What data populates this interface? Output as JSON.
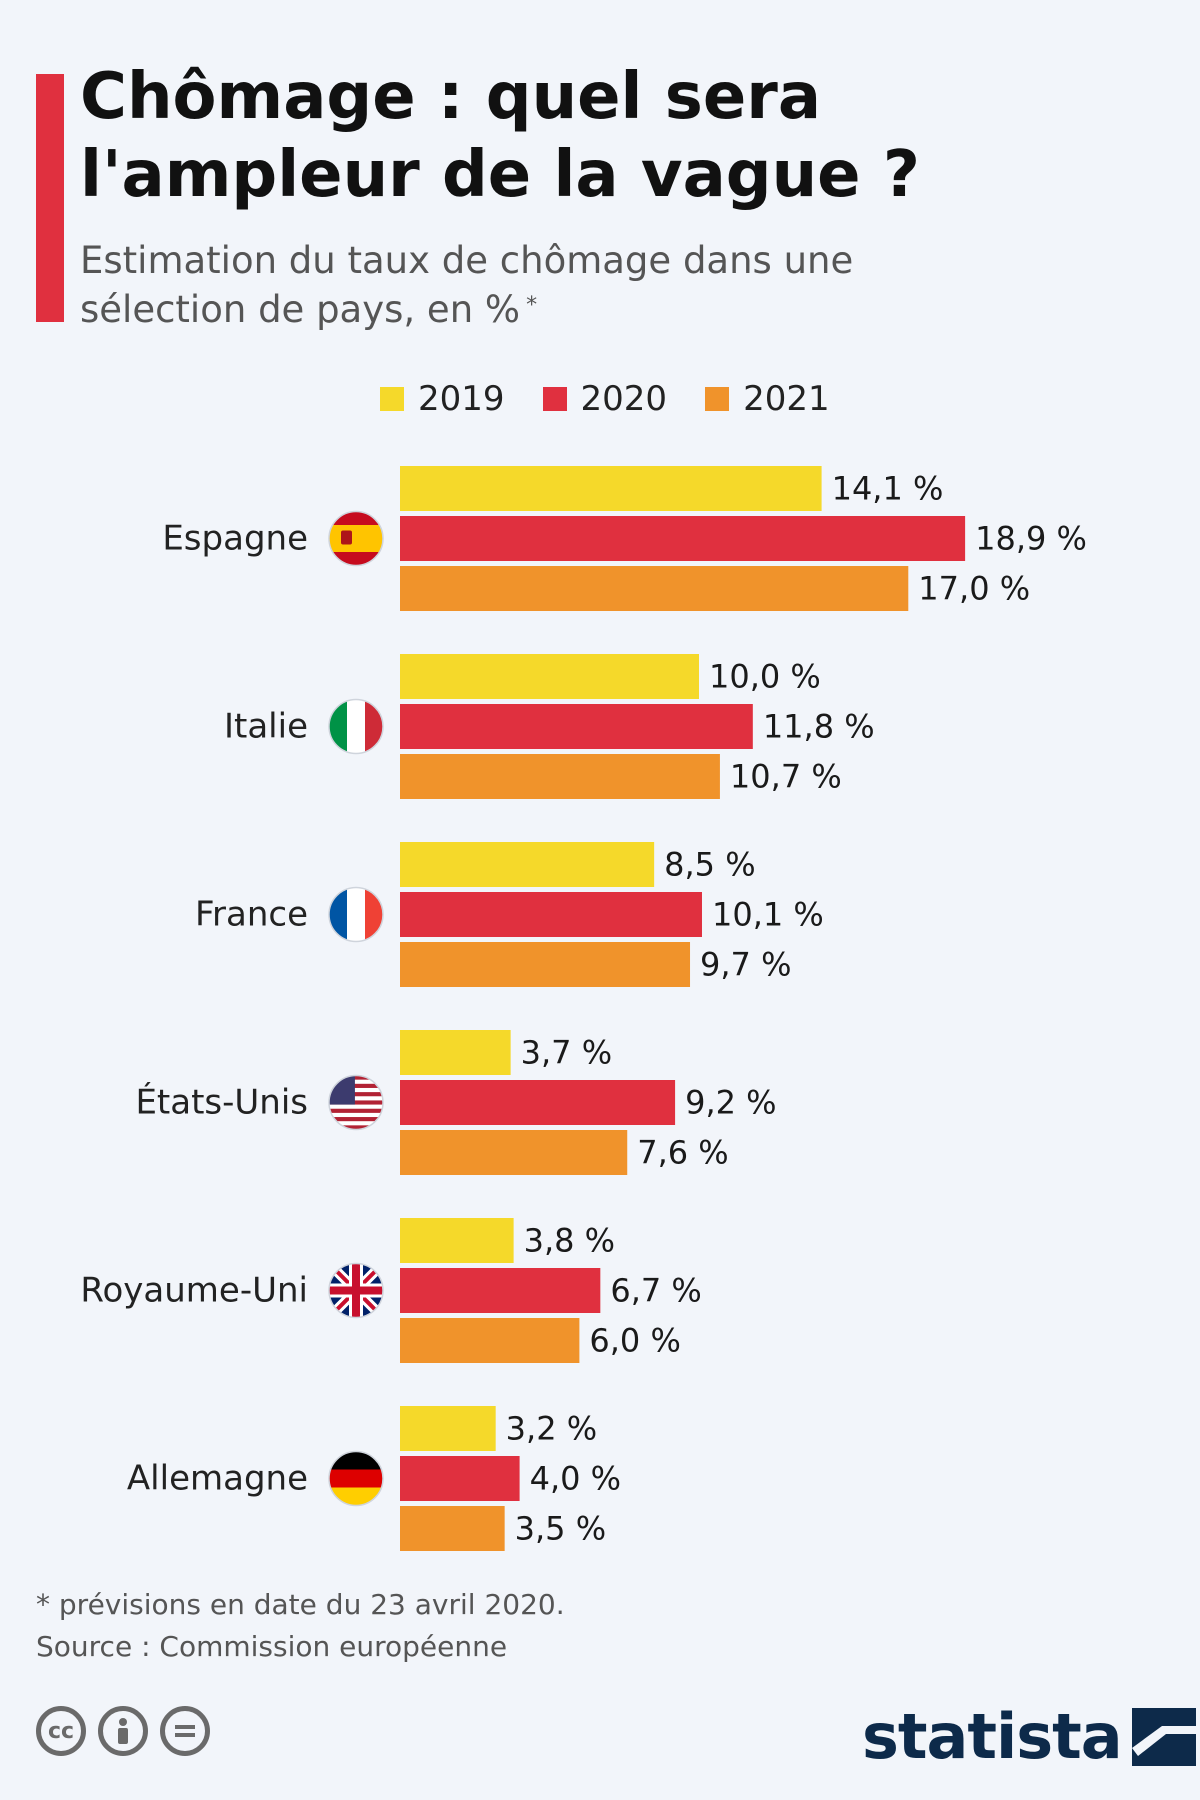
{
  "header": {
    "title": "Chômage : quel sera l'ampleur de la vague ?",
    "subtitle": "Estimation du taux de chômage dans une sélection de pays, en %",
    "subtitle_marker": "*"
  },
  "footer": {
    "footnote": "* prévisions en date du 23 avril 2020.",
    "source": "Source : Commission européenne",
    "brand": "statista"
  },
  "icons": {
    "license": [
      "cc-icon",
      "by-icon",
      "nd-icon"
    ],
    "logo": "statista-logo-icon"
  },
  "colors": {
    "accent": "#e0303f",
    "series_2019": "#f5d92a",
    "series_2020": "#e0303f",
    "series_2021": "#f0932b",
    "brand_dark": "#0d2a4a"
  },
  "chart_data": {
    "type": "bar",
    "orientation": "horizontal",
    "categories": [
      "Espagne",
      "Italie",
      "France",
      "États-Unis",
      "Royaume-Uni",
      "Allemagne"
    ],
    "flags": [
      "spain-flag-icon",
      "italy-flag-icon",
      "france-flag-icon",
      "usa-flag-icon",
      "uk-flag-icon",
      "germany-flag-icon"
    ],
    "series": [
      {
        "name": "2019",
        "color": "#f5d92a",
        "values": [
          14.1,
          10.0,
          8.5,
          3.7,
          3.8,
          3.2
        ],
        "labels": [
          "14,1 %",
          "10,0 %",
          "8,5 %",
          "3,7 %",
          "3,8 %",
          "3,2 %"
        ]
      },
      {
        "name": "2020",
        "color": "#e0303f",
        "values": [
          18.9,
          11.8,
          10.1,
          9.2,
          6.7,
          4.0
        ],
        "labels": [
          "18,9 %",
          "11,8 %",
          "10,1 %",
          "9,2 %",
          "6,7 %",
          "4,0 %"
        ]
      },
      {
        "name": "2021",
        "color": "#f0932b",
        "values": [
          17.0,
          10.7,
          9.7,
          7.6,
          6.0,
          3.5
        ],
        "labels": [
          "17,0 %",
          "10,7 %",
          "9,7 %",
          "7,6 %",
          "6,0 %",
          "3,5 %"
        ]
      }
    ],
    "xlim": [
      0,
      20
    ],
    "grid": false,
    "legend": "top"
  }
}
